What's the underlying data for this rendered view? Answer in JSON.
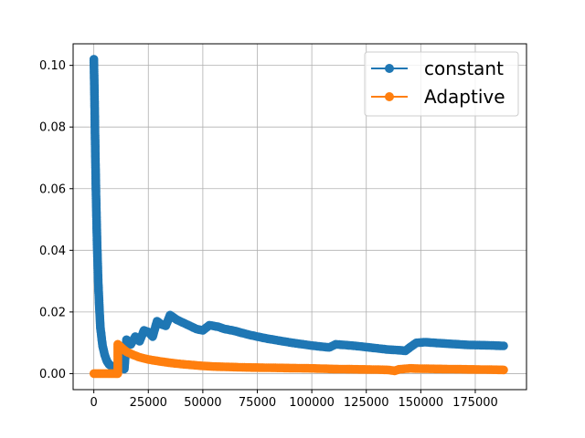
{
  "chart_data": {
    "type": "line",
    "xlim": [
      -9500,
      198500
    ],
    "ylim": [
      -0.0052,
      0.107
    ],
    "xticks": [
      0,
      25000,
      50000,
      75000,
      100000,
      125000,
      150000,
      175000
    ],
    "xtick_labels": [
      "0",
      "25000",
      "50000",
      "75000",
      "100000",
      "125000",
      "150000",
      "175000"
    ],
    "yticks": [
      0.0,
      0.02,
      0.04,
      0.06,
      0.08,
      0.1
    ],
    "ytick_labels": [
      "0.00",
      "0.02",
      "0.04",
      "0.06",
      "0.08",
      "0.10"
    ],
    "grid": true,
    "legend_position": "top-right",
    "series": [
      {
        "name": "constant",
        "color": "#1f77b4",
        "marker": "circle",
        "points": [
          [
            0,
            0.102
          ],
          [
            300,
            0.09
          ],
          [
            600,
            0.075
          ],
          [
            1000,
            0.058
          ],
          [
            1500,
            0.042
          ],
          [
            2000,
            0.03
          ],
          [
            2500,
            0.022
          ],
          [
            3000,
            0.015
          ],
          [
            4000,
            0.009
          ],
          [
            5000,
            0.006
          ],
          [
            6000,
            0.004
          ],
          [
            7000,
            0.003
          ],
          [
            8000,
            0.0025
          ],
          [
            10000,
            0.002
          ],
          [
            12000,
            0.0018
          ],
          [
            14000,
            0.0015
          ],
          [
            15000,
            0.011
          ],
          [
            17000,
            0.0095
          ],
          [
            19000,
            0.012
          ],
          [
            21000,
            0.0105
          ],
          [
            23000,
            0.014
          ],
          [
            25000,
            0.0135
          ],
          [
            27000,
            0.012
          ],
          [
            29000,
            0.017
          ],
          [
            31000,
            0.016
          ],
          [
            33000,
            0.0155
          ],
          [
            35000,
            0.019
          ],
          [
            38000,
            0.0175
          ],
          [
            41000,
            0.0165
          ],
          [
            44000,
            0.0155
          ],
          [
            47000,
            0.0145
          ],
          [
            50000,
            0.014
          ],
          [
            53000,
            0.0157
          ],
          [
            57000,
            0.0152
          ],
          [
            60000,
            0.0145
          ],
          [
            65000,
            0.0138
          ],
          [
            70000,
            0.0128
          ],
          [
            75000,
            0.012
          ],
          [
            80000,
            0.0113
          ],
          [
            85000,
            0.0107
          ],
          [
            90000,
            0.0101
          ],
          [
            95000,
            0.0096
          ],
          [
            100000,
            0.0091
          ],
          [
            105000,
            0.0087
          ],
          [
            108000,
            0.0085
          ],
          [
            111000,
            0.0095
          ],
          [
            115000,
            0.0093
          ],
          [
            120000,
            0.009
          ],
          [
            125000,
            0.0086
          ],
          [
            130000,
            0.0082
          ],
          [
            135000,
            0.0078
          ],
          [
            140000,
            0.0076
          ],
          [
            143000,
            0.0074
          ],
          [
            145000,
            0.0085
          ],
          [
            148000,
            0.01
          ],
          [
            152000,
            0.0102
          ],
          [
            158000,
            0.0099
          ],
          [
            165000,
            0.0096
          ],
          [
            172000,
            0.0093
          ],
          [
            180000,
            0.0092
          ],
          [
            188000,
            0.009
          ]
        ]
      },
      {
        "name": "Adaptive",
        "color": "#ff7f0e",
        "marker": "circle",
        "points": [
          [
            0,
            0.0
          ],
          [
            2000,
            0.0
          ],
          [
            4000,
            0.0
          ],
          [
            6000,
            0.0
          ],
          [
            8000,
            0.0
          ],
          [
            10000,
            0.0
          ],
          [
            11000,
            0.0
          ],
          [
            11000,
            0.0095
          ],
          [
            13000,
            0.0082
          ],
          [
            15000,
            0.0071
          ],
          [
            18000,
            0.0061
          ],
          [
            21000,
            0.0053
          ],
          [
            25000,
            0.0046
          ],
          [
            30000,
            0.004
          ],
          [
            35000,
            0.0035
          ],
          [
            40000,
            0.0031
          ],
          [
            45000,
            0.0028
          ],
          [
            50000,
            0.0025
          ],
          [
            55000,
            0.0023
          ],
          [
            60000,
            0.0022
          ],
          [
            70000,
            0.002
          ],
          [
            80000,
            0.0019
          ],
          [
            90000,
            0.0018
          ],
          [
            100000,
            0.0017
          ],
          [
            110000,
            0.0015
          ],
          [
            120000,
            0.0014
          ],
          [
            130000,
            0.0013
          ],
          [
            135000,
            0.0012
          ],
          [
            138000,
            0.0009
          ],
          [
            140000,
            0.0014
          ],
          [
            145000,
            0.0017
          ],
          [
            150000,
            0.0016
          ],
          [
            160000,
            0.0015
          ],
          [
            170000,
            0.0014
          ],
          [
            180000,
            0.0013
          ],
          [
            188000,
            0.0012
          ]
        ]
      }
    ]
  }
}
